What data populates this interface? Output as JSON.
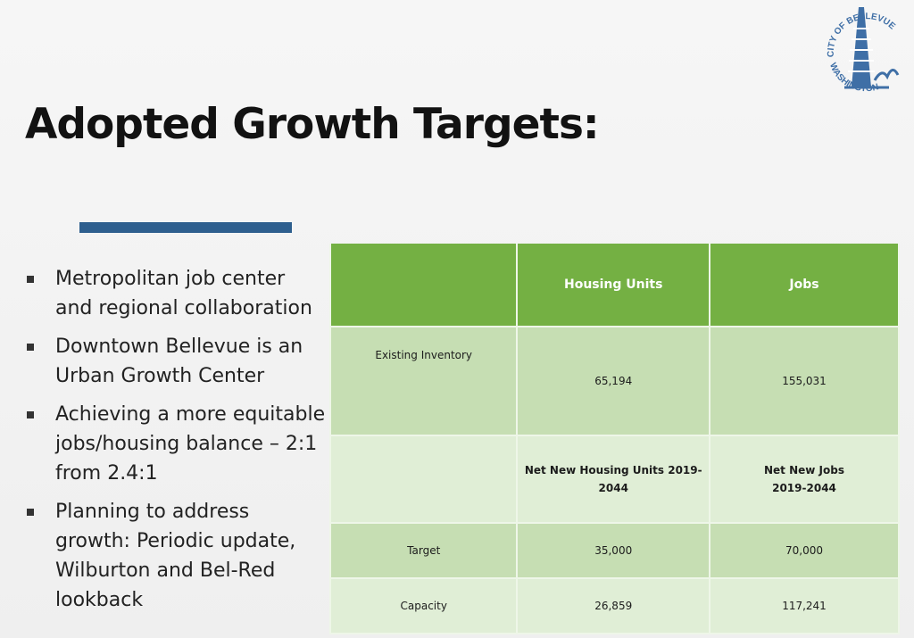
{
  "logo": {
    "top_text": "CITY OF BELLEVUE",
    "bottom_text": "WASHINGTON",
    "icon": "bellevue-city-seal"
  },
  "title": "Adopted Growth Targets:",
  "bullets": [
    "Metropolitan job center and regional collaboration",
    "Downtown Bellevue is an Urban Growth Center",
    "Achieving a more equitable jobs/housing balance – 2:1 from 2.4:1",
    "Planning to address growth: Periodic update, Wilburton and Bel-Red lookback"
  ],
  "table": {
    "header": [
      "",
      "Housing Units",
      "Jobs"
    ],
    "rows": [
      [
        "Existing Inventory",
        "65,194",
        "155,031"
      ],
      [
        "",
        "Net New Housing Units 2019-2044",
        "Net New Jobs 2019-2044"
      ],
      [
        "Target",
        "35,000",
        "70,000"
      ],
      [
        "Capacity",
        "26,859",
        "117,241"
      ]
    ]
  },
  "colors": {
    "accent_bar": "#2e5f8e",
    "table_header": "#74b043",
    "table_row_dark": "#c6deb3",
    "table_row_light": "#e0eed6"
  }
}
